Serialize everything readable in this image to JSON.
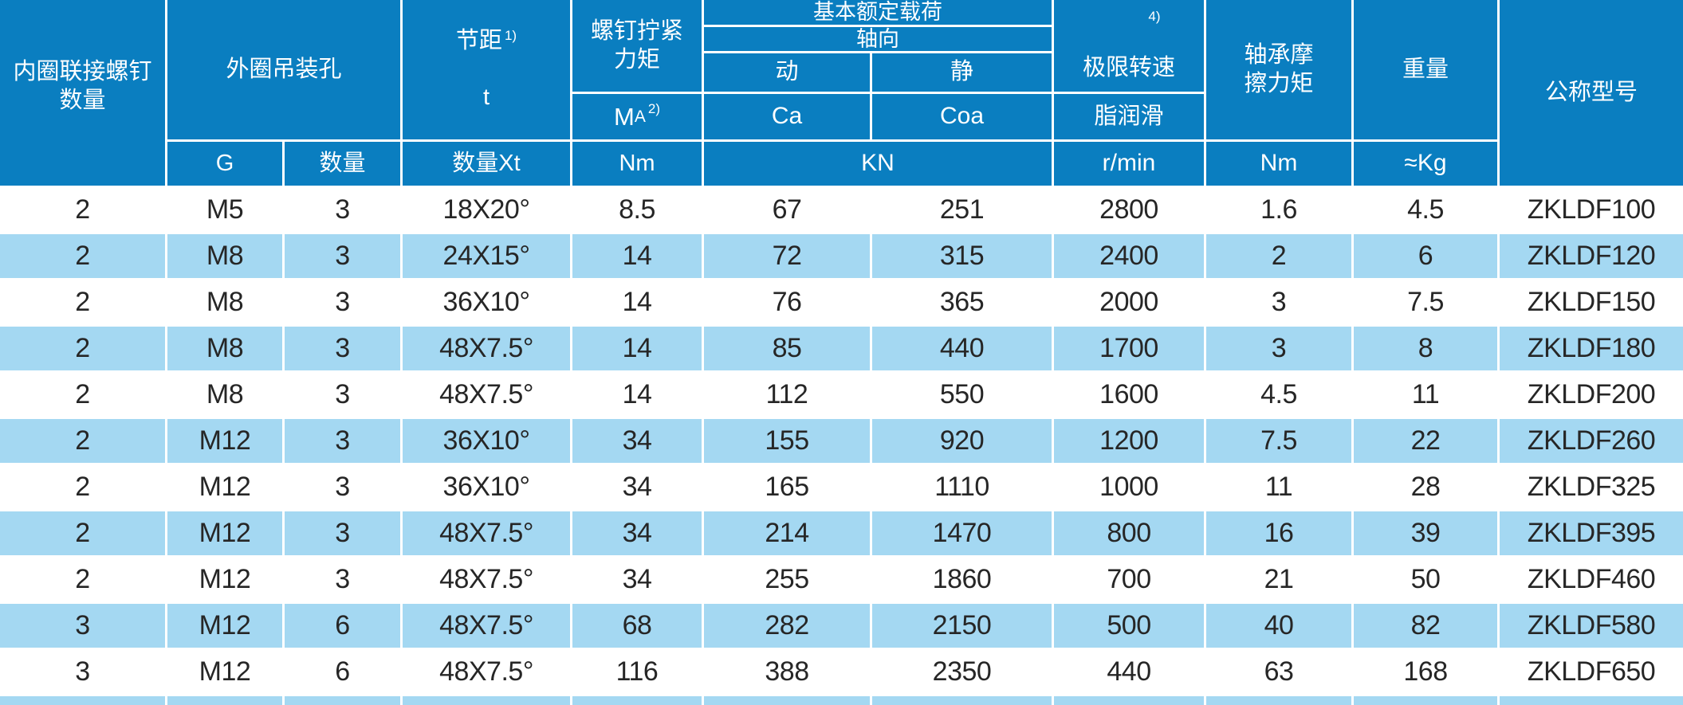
{
  "colors": {
    "header_blue": "#0a7ec0",
    "row_alt_blue": "#a4d8f2",
    "data_text": "#262626",
    "header_text": "#ffffff"
  },
  "header": {
    "inner_ring_screw_count": "内圈联接螺钉\n数量",
    "outer_ring_lifting_hole": "外圈吊装孔",
    "outer_ring_g": "G",
    "outer_ring_qty": "数量",
    "pitch_label": "节距",
    "pitch_sup": "1)",
    "pitch_symbol": "t",
    "pitch_unit": "数量Xt",
    "screw_torque": "螺钉拧紧\n力矩",
    "screw_torque_symbol_main": "M",
    "screw_torque_symbol_sub": "A",
    "screw_torque_sup": "2)",
    "screw_torque_unit": "Nm",
    "basic_load": "基本额定载荷",
    "axial": "轴向",
    "dynamic": "动",
    "static": "静",
    "dynamic_symbol": "Ca",
    "static_symbol": "Coa",
    "load_unit": "KN",
    "limit_speed": "极限转速",
    "limit_speed_sup": "4)",
    "limit_speed_sub": "脂润滑",
    "limit_speed_unit": "r/min",
    "friction_torque": "轴承摩\n擦力矩",
    "friction_torque_unit": "Nm",
    "weight": "重量",
    "weight_unit": "≈Kg",
    "model": "公称型号"
  },
  "rows": [
    [
      "2",
      "M5",
      "3",
      "18X20°",
      "8.5",
      "67",
      "251",
      "2800",
      "1.6",
      "4.5",
      "ZKLDF100"
    ],
    [
      "2",
      "M8",
      "3",
      "24X15°",
      "14",
      "72",
      "315",
      "2400",
      "2",
      "6",
      "ZKLDF120"
    ],
    [
      "2",
      "M8",
      "3",
      "36X10°",
      "14",
      "76",
      "365",
      "2000",
      "3",
      "7.5",
      "ZKLDF150"
    ],
    [
      "2",
      "M8",
      "3",
      "48X7.5°",
      "14",
      "85",
      "440",
      "1700",
      "3",
      "8",
      "ZKLDF180"
    ],
    [
      "2",
      "M8",
      "3",
      "48X7.5°",
      "14",
      "112",
      "550",
      "1600",
      "4.5",
      "11",
      "ZKLDF200"
    ],
    [
      "2",
      "M12",
      "3",
      "36X10°",
      "34",
      "155",
      "920",
      "1200",
      "7.5",
      "22",
      "ZKLDF260"
    ],
    [
      "2",
      "M12",
      "3",
      "36X10°",
      "34",
      "165",
      "1110",
      "1000",
      "11",
      "28",
      "ZKLDF325"
    ],
    [
      "2",
      "M12",
      "3",
      "48X7.5°",
      "34",
      "214",
      "1470",
      "800",
      "16",
      "39",
      "ZKLDF395"
    ],
    [
      "2",
      "M12",
      "3",
      "48X7.5°",
      "34",
      "255",
      "1860",
      "700",
      "21",
      "50",
      "ZKLDF460"
    ],
    [
      "3",
      "M12",
      "6",
      "48X7.5°",
      "68",
      "282",
      "2150",
      "500",
      "40",
      "82",
      "ZKLDF580"
    ],
    [
      "3",
      "M12",
      "6",
      "48X7.5°",
      "116",
      "388",
      "2350",
      "440",
      "63",
      "168",
      "ZKLDF650"
    ]
  ]
}
